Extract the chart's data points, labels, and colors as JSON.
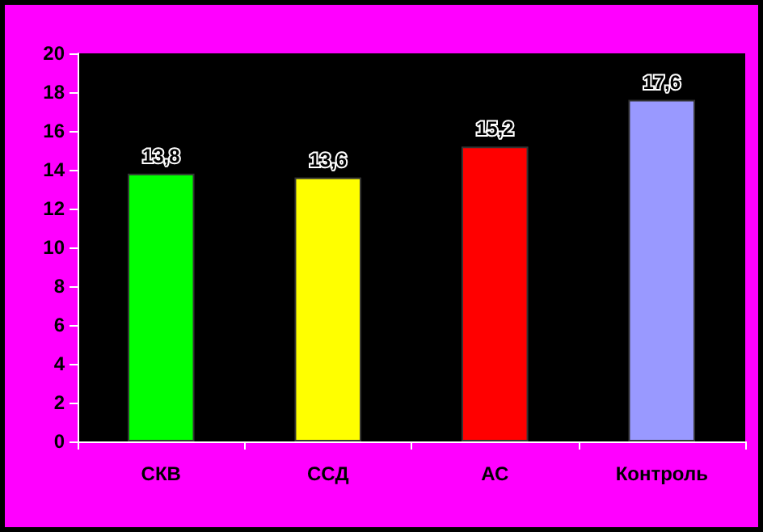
{
  "chart_data": {
    "type": "bar",
    "categories": [
      "СКВ",
      "ССД",
      "АС",
      "Контроль"
    ],
    "values": [
      13.8,
      13.6,
      15.2,
      17.6
    ],
    "colors": [
      "#00ff00",
      "#ffff00",
      "#ff0000",
      "#9999ff"
    ],
    "value_labels": [
      "13,8",
      "13,6",
      "15,2",
      "17,6"
    ],
    "ylim": [
      0,
      20
    ],
    "yticks": [
      0,
      2,
      4,
      6,
      8,
      10,
      12,
      14,
      16,
      18,
      20
    ],
    "grid": false
  }
}
